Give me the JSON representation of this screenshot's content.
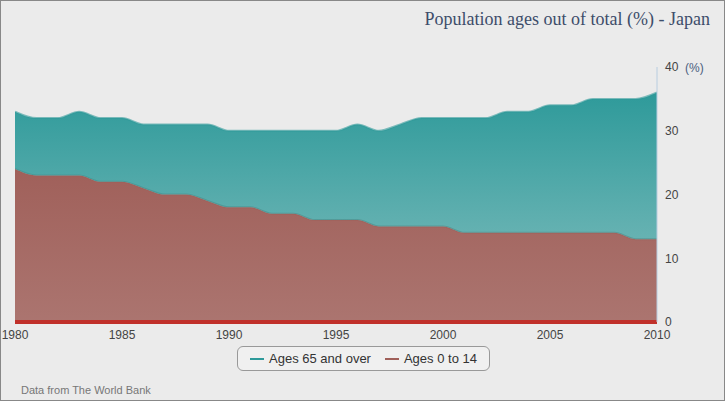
{
  "chart_data": {
    "type": "area",
    "title": "Population ages out of total (%) - Japan",
    "y_label": "(%)",
    "source": "Data from The World Bank",
    "stacked": true,
    "legend": "bottom",
    "x": [
      1980,
      1981,
      1982,
      1983,
      1984,
      1985,
      1986,
      1987,
      1988,
      1989,
      1990,
      1991,
      1992,
      1993,
      1994,
      1995,
      1996,
      1997,
      1998,
      1999,
      2000,
      2001,
      2002,
      2003,
      2004,
      2005,
      2006,
      2007,
      2008,
      2009,
      2010
    ],
    "xlim": [
      1980,
      2010
    ],
    "xticks": [
      1980,
      1985,
      1990,
      1995,
      2000,
      2005,
      2010
    ],
    "ylim": [
      0,
      40
    ],
    "yticks": [
      0,
      10,
      20,
      30,
      40
    ],
    "series": [
      {
        "name": "Ages 65 and over",
        "color": "#2e9a9a",
        "values": [
          9,
          9,
          9,
          10,
          10,
          10,
          10,
          11,
          11,
          12,
          12,
          12,
          13,
          13,
          14,
          14,
          15,
          15,
          16,
          17,
          17,
          18,
          18,
          19,
          19,
          20,
          20,
          21,
          21,
          22,
          23
        ]
      },
      {
        "name": "Ages 0 to 14",
        "color": "#a0605a",
        "values": [
          24,
          23,
          23,
          23,
          22,
          22,
          21,
          20,
          20,
          19,
          18,
          18,
          17,
          17,
          16,
          16,
          16,
          15,
          15,
          15,
          15,
          14,
          14,
          14,
          14,
          14,
          14,
          14,
          14,
          13,
          13
        ]
      }
    ]
  }
}
